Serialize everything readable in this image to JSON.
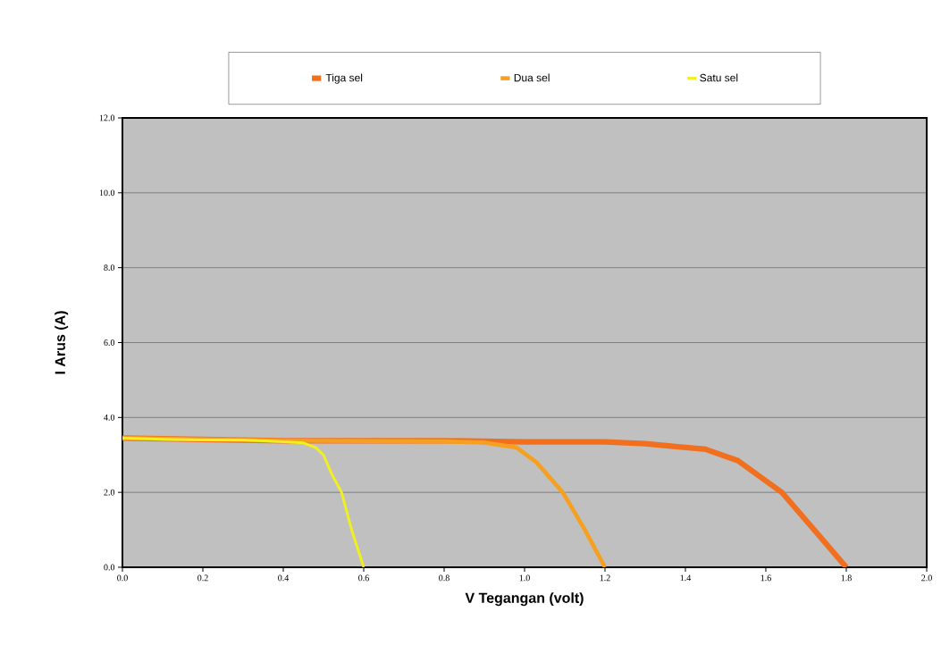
{
  "chart_data": {
    "type": "line",
    "xlabel": "V Tegangan (volt)",
    "ylabel": "I Arus (A)",
    "xlim": [
      0,
      2.0
    ],
    "ylim": [
      0,
      12.0
    ],
    "xticks": [
      {
        "value": 0,
        "label": "0.0"
      },
      0.2,
      0.4,
      0.6,
      0.8,
      {
        "value": 1.0,
        "label": "1.0"
      },
      1.2,
      1.4,
      1.6,
      1.8,
      {
        "value": 2.0,
        "label": "2.0"
      }
    ],
    "yticks": [
      {
        "value": 0,
        "label": "0.0"
      },
      {
        "value": 2,
        "label": "2.0"
      },
      {
        "value": 4,
        "label": "4.0"
      },
      {
        "value": 6,
        "label": "6.0"
      },
      {
        "value": 8,
        "label": "8.0"
      },
      {
        "value": 10,
        "label": "10.0"
      },
      {
        "value": 12,
        "label": "12.0"
      }
    ],
    "grid": "y",
    "legend": "top",
    "marker": "none",
    "line_style": "solid",
    "series": [
      {
        "name": "Tiga sel",
        "color": "#f07020",
        "x": [
          0,
          0.4,
          0.8,
          1.0,
          1.2,
          1.3,
          1.45,
          1.53,
          1.64,
          1.72,
          1.8
        ],
        "values": [
          3.45,
          3.38,
          3.38,
          3.35,
          3.35,
          3.3,
          3.15,
          2.85,
          2.0,
          1.0,
          0
        ]
      },
      {
        "name": "Dua sel",
        "color": "#f5a020",
        "x": [
          0,
          0.4,
          0.8,
          0.9,
          0.98,
          1.03,
          1.095,
          1.15,
          1.2
        ],
        "values": [
          3.45,
          3.38,
          3.36,
          3.33,
          3.2,
          2.8,
          2.0,
          1.0,
          0
        ]
      },
      {
        "name": "Satu sel",
        "color": "#f0f020",
        "x": [
          0,
          0.1,
          0.2,
          0.3,
          0.4,
          0.45,
          0.48,
          0.5,
          0.52,
          0.545,
          0.57,
          0.6
        ],
        "values": [
          3.45,
          3.42,
          3.4,
          3.4,
          3.35,
          3.32,
          3.2,
          3.0,
          2.5,
          2.0,
          1.0,
          0
        ]
      }
    ]
  }
}
